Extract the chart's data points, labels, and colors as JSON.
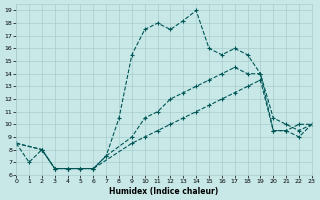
{
  "xlabel": "Humidex (Indice chaleur)",
  "xlim": [
    0,
    23
  ],
  "ylim": [
    6,
    19.5
  ],
  "yticks": [
    6,
    7,
    8,
    9,
    10,
    11,
    12,
    13,
    14,
    15,
    16,
    17,
    18,
    19
  ],
  "xticks": [
    0,
    1,
    2,
    3,
    4,
    5,
    6,
    7,
    8,
    9,
    10,
    11,
    12,
    13,
    14,
    15,
    16,
    17,
    18,
    19,
    20,
    21,
    22,
    23
  ],
  "bg_color": "#c8e8e8",
  "grid_color": "#a8cccc",
  "line_color": "#005555",
  "line1_x": [
    0,
    1,
    2,
    3,
    4,
    5,
    6,
    7,
    8,
    9,
    10,
    11,
    12,
    13,
    14,
    15,
    16,
    17,
    18,
    19,
    20,
    21,
    22,
    23
  ],
  "line1_y": [
    8.5,
    7.0,
    8.0,
    6.5,
    6.5,
    6.5,
    6.5,
    7.5,
    10.5,
    15.5,
    17.5,
    18.0,
    17.5,
    18.2,
    19.0,
    16.0,
    15.5,
    16.0,
    15.5,
    14.0,
    9.5,
    9.5,
    10.0,
    10.0
  ],
  "line2_x": [
    0,
    2,
    3,
    4,
    5,
    6,
    7,
    9,
    10,
    11,
    12,
    13,
    14,
    15,
    16,
    17,
    18,
    19,
    20,
    21,
    22,
    23
  ],
  "line2_y": [
    8.5,
    8.0,
    6.5,
    6.5,
    6.5,
    6.5,
    7.5,
    9.0,
    10.5,
    11.0,
    12.0,
    12.5,
    13.0,
    13.5,
    14.0,
    14.5,
    14.0,
    14.0,
    10.5,
    10.0,
    9.5,
    10.0
  ],
  "line3_x": [
    0,
    2,
    3,
    4,
    5,
    6,
    9,
    10,
    11,
    12,
    13,
    14,
    15,
    16,
    17,
    18,
    19,
    20,
    21,
    22,
    23
  ],
  "line3_y": [
    8.5,
    8.0,
    6.5,
    6.5,
    6.5,
    6.5,
    8.5,
    9.0,
    9.5,
    10.0,
    10.5,
    11.0,
    11.5,
    12.0,
    12.5,
    13.0,
    13.5,
    9.5,
    9.5,
    9.0,
    10.0
  ]
}
